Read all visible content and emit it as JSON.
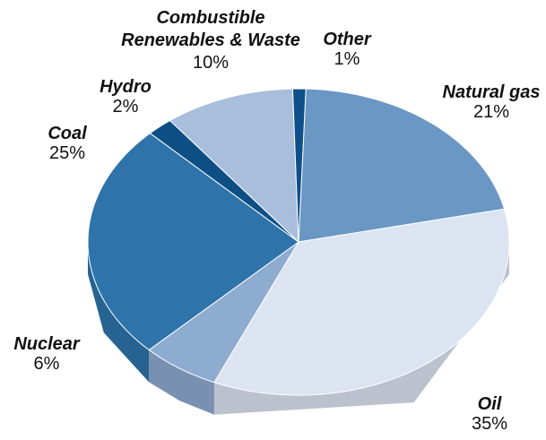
{
  "chart_data": {
    "type": "pie3d",
    "categories": [
      "Natural gas",
      "Oil",
      "Nuclear",
      "Coal",
      "Hydro",
      "Combustible Renewables & Waste",
      "Other"
    ],
    "values": [
      21,
      35,
      6,
      25,
      2,
      10,
      1
    ],
    "value_labels": [
      "21%",
      "35%",
      "6%",
      "25%",
      "2%",
      "10%",
      "1%"
    ],
    "colors": [
      "#6a97c4",
      "#dce4f1",
      "#8eabd0",
      "#2e74ab",
      "#0d4f85",
      "#a8bedb",
      "#0f4f8a"
    ]
  }
}
